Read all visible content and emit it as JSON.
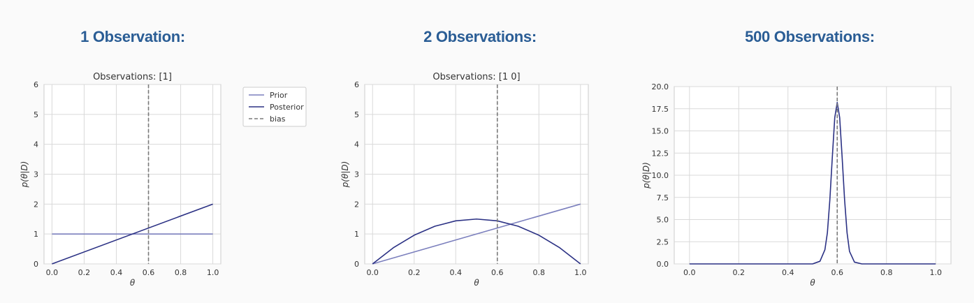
{
  "headings": [
    "1 Observation:",
    "2 Observations:",
    "500 Observations:"
  ],
  "colors": {
    "prior": "#7b7fbd",
    "posterior": "#2b3184",
    "bias": "#7a7a7a",
    "heading": "#2a5d95",
    "grid": "#d9d9d9",
    "spine": "#cccccc",
    "text": "#333333"
  },
  "chart_data": [
    {
      "type": "line",
      "title": "Observations: [1]",
      "xlabel": "θ",
      "ylabel": "p(θ|D)",
      "xlim": [
        0,
        1
      ],
      "ylim": [
        0,
        6
      ],
      "xticks": [
        "0.0",
        "0.2",
        "0.4",
        "0.6",
        "0.8",
        "1.0"
      ],
      "yticks": [
        "0",
        "1",
        "2",
        "3",
        "4",
        "5",
        "6"
      ],
      "grid": true,
      "legend": {
        "placement": "outside-right",
        "entries": [
          "Prior",
          "Posterior",
          "bias"
        ]
      },
      "bias": 0.6,
      "series": [
        {
          "name": "Prior",
          "x": [
            0,
            1
          ],
          "y": [
            1,
            1
          ]
        },
        {
          "name": "Posterior",
          "x": [
            0,
            1
          ],
          "y": [
            0,
            2
          ]
        }
      ]
    },
    {
      "type": "line",
      "title": "Observations: [1 0]",
      "xlabel": "θ",
      "ylabel": "p(θ|D)",
      "xlim": [
        0,
        1
      ],
      "ylim": [
        0,
        6
      ],
      "xticks": [
        "0.0",
        "0.2",
        "0.4",
        "0.6",
        "0.8",
        "1.0"
      ],
      "yticks": [
        "0",
        "1",
        "2",
        "3",
        "4",
        "5",
        "6"
      ],
      "grid": true,
      "bias": 0.6,
      "series": [
        {
          "name": "Prior",
          "x": [
            0,
            1
          ],
          "y": [
            0,
            2
          ]
        },
        {
          "name": "Posterior",
          "x": [
            0,
            0.1,
            0.2,
            0.3,
            0.4,
            0.5,
            0.6,
            0.7,
            0.8,
            0.9,
            1.0
          ],
          "y": [
            0,
            0.54,
            0.96,
            1.26,
            1.44,
            1.5,
            1.44,
            1.26,
            0.96,
            0.54,
            0
          ]
        }
      ]
    },
    {
      "type": "line",
      "title": "",
      "xlabel": "θ",
      "ylabel": "p(θ|D)",
      "xlim": [
        0,
        1
      ],
      "ylim": [
        0,
        20
      ],
      "xticks": [
        "0.0",
        "0.2",
        "0.4",
        "0.6",
        "0.8",
        "1.0"
      ],
      "yticks": [
        "0.0",
        "2.5",
        "5.0",
        "7.5",
        "10.0",
        "12.5",
        "15.0",
        "17.5",
        "20.0"
      ],
      "grid": true,
      "bias": 0.6,
      "series": [
        {
          "name": "Posterior",
          "x": [
            0,
            0.5,
            0.53,
            0.55,
            0.56,
            0.57,
            0.58,
            0.59,
            0.6,
            0.61,
            0.62,
            0.63,
            0.64,
            0.65,
            0.67,
            0.7,
            1.0
          ],
          "y": [
            0,
            0,
            0.3,
            1.6,
            3.5,
            7.2,
            12.0,
            16.5,
            18.2,
            16.5,
            12.0,
            7.2,
            3.5,
            1.4,
            0.2,
            0,
            0
          ]
        }
      ]
    }
  ]
}
